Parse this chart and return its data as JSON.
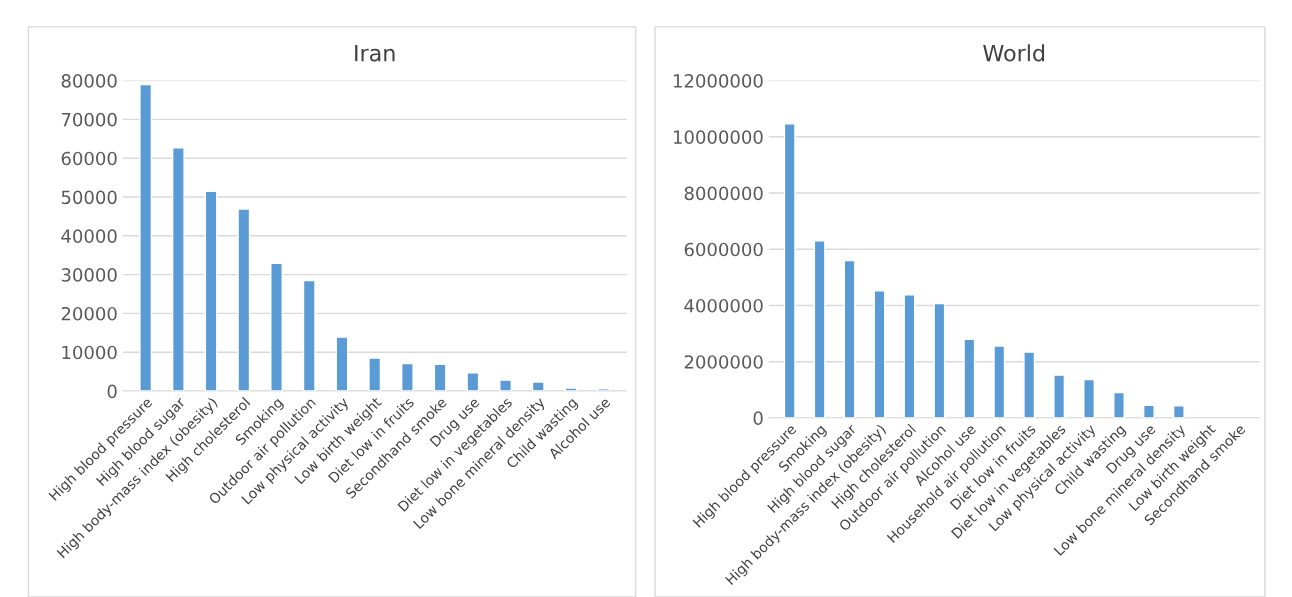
{
  "chart_data": [
    {
      "type": "bar",
      "title": "Iran",
      "categories": [
        "High blood pressure",
        "High blood sugar",
        "High body-mass index (obesity)",
        "High cholesterol",
        "Smoking",
        "Outdoor air pollution",
        "Low physical activity",
        "Low birth weight",
        "Diet low in fruits",
        "Secondhand smoke",
        "Drug use",
        "Diet low in vegetables",
        "Low bone mineral density",
        "Child wasting",
        "Alcohol use"
      ],
      "values": [
        79000,
        62700,
        51500,
        46900,
        32900,
        28500,
        13900,
        8500,
        7100,
        6900,
        4700,
        2800,
        2300,
        800,
        600
      ],
      "color": "#5b9bd5",
      "ylim": [
        0,
        80000
      ],
      "yticks": [
        0,
        10000,
        20000,
        30000,
        40000,
        50000,
        60000,
        70000,
        80000
      ],
      "grid": "y"
    },
    {
      "type": "bar",
      "title": "World",
      "categories": [
        "High blood pressure",
        "Smoking",
        "High blood sugar",
        "High body-mass index (obesity)",
        "High cholesterol",
        "Outdoor air pollution",
        "Alcohol use",
        "Household air pollution",
        "Diet low in fruits",
        "Diet low in vegetables",
        "Low physical activity",
        "Child wasting",
        "Drug use",
        "Low bone mineral density",
        "Low birth weight",
        "Secondhand smoke"
      ],
      "values": [
        10460000,
        6300000,
        5600000,
        4520000,
        4380000,
        4070000,
        2800000,
        2560000,
        2340000,
        1520000,
        1360000,
        900000,
        450000,
        430000,
        null,
        null
      ],
      "color": "#5b9bd5",
      "ylim": [
        0,
        12000000
      ],
      "yticks": [
        0,
        2000000,
        4000000,
        6000000,
        8000000,
        10000000,
        12000000
      ],
      "grid": "y"
    }
  ]
}
